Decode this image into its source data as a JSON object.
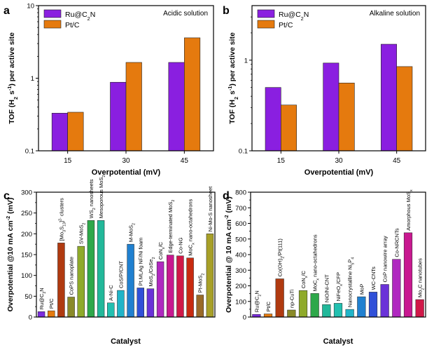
{
  "panels": [
    {
      "letter": "a",
      "type": "bar",
      "scale": "log",
      "ylim": [
        0.1,
        10
      ],
      "yticks": [
        {
          "v": 0.1,
          "label": "0.1"
        },
        {
          "v": 1,
          "label": "1"
        },
        {
          "v": 10,
          "label": "10"
        }
      ],
      "categories": [
        "15",
        "30",
        "45"
      ],
      "xlabel": "Overpotential (mV)",
      "ylabel_parts": [
        "TOF (H",
        "2",
        " s",
        "-1",
        ") per active site"
      ],
      "annotation": "Acidic solution",
      "legend": [
        {
          "label_parts": [
            "Ru@C",
            "2",
            "N"
          ],
          "color": "#8a1fe0"
        },
        {
          "label_parts": [
            "Pt/C"
          ],
          "color": "#e57a0e"
        }
      ],
      "series": [
        {
          "name": "Ru@C2N",
          "color": "#8a1fe0",
          "values": [
            0.33,
            0.88,
            1.65
          ]
        },
        {
          "name": "Pt/C",
          "color": "#e57a0e",
          "values": [
            0.34,
            1.65,
            3.6
          ]
        }
      ]
    },
    {
      "letter": "b",
      "type": "bar",
      "scale": "log",
      "ylim": [
        0.1,
        4
      ],
      "yticks": [
        {
          "v": 0.1,
          "label": "0.1"
        },
        {
          "v": 1,
          "label": "1"
        }
      ],
      "categories": [
        "15",
        "30",
        "45"
      ],
      "xlabel": "Overpotential (mV)",
      "ylabel_parts": [
        "TOF (H",
        "2",
        " s",
        "-1",
        ") per active site"
      ],
      "annotation": "Alkaline solution",
      "legend": [
        {
          "label_parts": [
            "Ru@C",
            "2",
            "N"
          ],
          "color": "#8a1fe0"
        },
        {
          "label_parts": [
            "Pt/C"
          ],
          "color": "#e57a0e"
        }
      ],
      "series": [
        {
          "name": "Ru@C2N",
          "color": "#8a1fe0",
          "values": [
            0.5,
            0.93,
            1.5
          ]
        },
        {
          "name": "Pt/C",
          "color": "#e57a0e",
          "values": [
            0.32,
            0.56,
            0.85
          ]
        }
      ]
    },
    {
      "letter": "c",
      "type": "bar",
      "scale": "linear",
      "ylim": [
        0,
        300
      ],
      "yticks": [
        {
          "v": 0,
          "label": "0"
        },
        {
          "v": 50,
          "label": "50"
        },
        {
          "v": 100,
          "label": "100"
        },
        {
          "v": 150,
          "label": "150"
        },
        {
          "v": 200,
          "label": "200"
        },
        {
          "v": 250,
          "label": "250"
        },
        {
          "v": 300,
          "label": "300"
        }
      ],
      "xlabel": "Catalyst",
      "ylabel_parts": [
        "Overpotential @10 mA cm",
        "-2",
        " (mV)"
      ],
      "bars": [
        {
          "label_parts": [
            "Ru@C",
            "2",
            "N"
          ],
          "value": 13,
          "color": "#7b2be0"
        },
        {
          "label_parts": [
            "Pt/C"
          ],
          "value": 15,
          "color": "#e57a0e"
        },
        {
          "label_parts": [
            "[Mo",
            "3",
            "S",
            "13",
            "]",
            "2-",
            " clusters"
          ],
          "value": 178,
          "color": "#b03a10"
        },
        {
          "label_parts": [
            "CoPS nanoplate"
          ],
          "value": 48,
          "color": "#8a8a28"
        },
        {
          "label_parts": [
            "SV-MoS",
            "2"
          ],
          "value": 170,
          "color": "#8faa2a"
        },
        {
          "label_parts": [
            "WS",
            "2",
            " nanosheets"
          ],
          "value": 232,
          "color": "#2ea84a"
        },
        {
          "label_parts": [
            "Mesoporous MoS",
            "2"
          ],
          "value": 232,
          "color": "#22b89a"
        },
        {
          "label_parts": [
            "A-Ni-C"
          ],
          "value": 34,
          "color": "#22c0b0"
        },
        {
          "label_parts": [
            "CoS/P/CNT"
          ],
          "value": 64,
          "color": "#20b4c8"
        },
        {
          "label_parts": [
            "M-MoS",
            "2"
          ],
          "value": 175,
          "color": "#2080d0"
        },
        {
          "label_parts": [
            "Pt.MLAg NF/Ni foam"
          ],
          "value": 70,
          "color": "#3050d8"
        },
        {
          "label_parts": [
            "MoS",
            "2",
            "/CoSe",
            "2"
          ],
          "value": 68,
          "color": "#6a32d8"
        },
        {
          "label_parts": [
            "CoN",
            "x",
            "/C"
          ],
          "value": 133,
          "color": "#b028c0"
        },
        {
          "label_parts": [
            "Edge-terminated MoS",
            "2"
          ],
          "value": 149,
          "color": "#c81890"
        },
        {
          "label_parts": [
            "Co-NG"
          ],
          "value": 147,
          "color": "#d01848"
        },
        {
          "label_parts": [
            "MoC",
            "x",
            " nano-octahedrons"
          ],
          "value": 142,
          "color": "#c82a10"
        },
        {
          "label_parts": [
            "Pt-MoS",
            "2"
          ],
          "value": 53,
          "color": "#9a6a28"
        },
        {
          "label_parts": [
            "Ni-Mo-S nanosheet"
          ],
          "value": 200,
          "color": "#a8a028"
        }
      ]
    },
    {
      "letter": "d",
      "type": "bar",
      "scale": "linear",
      "ylim": [
        0,
        800
      ],
      "yticks": [
        {
          "v": 0,
          "label": "0"
        },
        {
          "v": 100,
          "label": "100"
        },
        {
          "v": 200,
          "label": "200"
        },
        {
          "v": 300,
          "label": "300"
        },
        {
          "v": 400,
          "label": "400"
        },
        {
          "v": 500,
          "label": "500"
        },
        {
          "v": 600,
          "label": "600"
        },
        {
          "v": 700,
          "label": "700"
        },
        {
          "v": 800,
          "label": "800"
        }
      ],
      "xlabel": "Catalyst",
      "ylabel_parts": [
        "Overpotential @ 10 mA cm",
        "-2",
        " (mV)"
      ],
      "bars": [
        {
          "label_parts": [
            "Ru@C",
            "2",
            "N"
          ],
          "value": 17,
          "color": "#7b2be0"
        },
        {
          "label_parts": [
            "Pt/C"
          ],
          "value": 20,
          "color": "#e57a0e"
        },
        {
          "label_parts": [
            "Co(OH)",
            "2",
            "/Pt(111)"
          ],
          "value": 245,
          "color": "#b03a10"
        },
        {
          "label_parts": [
            "np-CuTi"
          ],
          "value": 45,
          "color": "#8a8a28"
        },
        {
          "label_parts": [
            "CoN",
            "x",
            "/C"
          ],
          "value": 170,
          "color": "#8faa2a"
        },
        {
          "label_parts": [
            "MoC",
            "x",
            " nano-octahedrons"
          ],
          "value": 151,
          "color": "#2ea84a"
        },
        {
          "label_parts": [
            "NiO/Ni-CNT"
          ],
          "value": 80,
          "color": "#22b89a"
        },
        {
          "label_parts": [
            "NiFeO",
            "x",
            "/CFP"
          ],
          "value": 88,
          "color": "#22c0b0"
        },
        {
          "label_parts": [
            "Nanocrystalline Ni",
            "5",
            "P",
            "4"
          ],
          "value": 49,
          "color": "#20b4c8"
        },
        {
          "label_parts": [
            "MoP"
          ],
          "value": 130,
          "color": "#2080d0"
        },
        {
          "label_parts": [
            "WC-CNTs"
          ],
          "value": 160,
          "color": "#3050d8"
        },
        {
          "label_parts": [
            "CoP nanowire array"
          ],
          "value": 209,
          "color": "#6a32d8"
        },
        {
          "label_parts": [
            "Co-NRCNTs"
          ],
          "value": 370,
          "color": "#b028c0"
        },
        {
          "label_parts": [
            "Amorphous MoS",
            "x"
          ],
          "value": 540,
          "color": "#c81890"
        },
        {
          "label_parts": [
            "Mo",
            "2",
            "C nanotubes"
          ],
          "value": 112,
          "color": "#d01848"
        }
      ]
    }
  ]
}
